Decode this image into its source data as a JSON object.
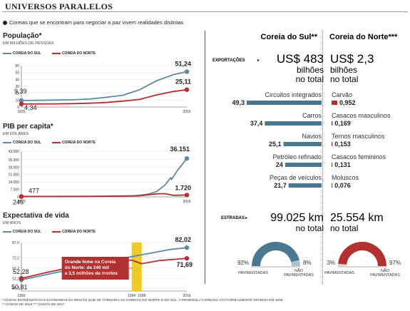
{
  "header": {
    "title": "UNIVERSOS PARALELOS",
    "subtitle": "Coreias que se encontram para negociar a paz vivem realidades distintas"
  },
  "colors": {
    "south": "#5f88a3",
    "north": "#b23030",
    "highlight": "#f1c40f",
    "annotation_bg": "#b23030"
  },
  "panels": {
    "population": {
      "title": "População*",
      "unit": "EM MILHÕES DE PESSOAS"
    },
    "gdp": {
      "title": "PIB per capita*",
      "unit": "EM DÓLARES"
    },
    "life": {
      "title": "Expectativa de vida",
      "unit": "EM ANOS"
    }
  },
  "legend": {
    "south": "COREIA DO SUL",
    "north": "COREIA DO NORTE"
  },
  "chart_data": [
    {
      "type": "line",
      "title": "População*",
      "ylabel": "EM MILHÕES DE PESSOAS",
      "x_ticks": [
        "1820",
        "2016"
      ],
      "y_ticks": [
        0,
        10,
        20,
        30,
        40,
        50,
        60
      ],
      "ylim": [
        0,
        60
      ],
      "xlim": [
        1820,
        2016
      ],
      "grid": true,
      "series": [
        {
          "name": "COREIA DO SUL",
          "start_label": "9,39",
          "end_label": "51,24",
          "x": [
            1820,
            1840,
            1860,
            1880,
            1900,
            1920,
            1940,
            1960,
            1980,
            2000,
            2016
          ],
          "values": [
            9.39,
            9.6,
            10.0,
            10.5,
            11.5,
            14.0,
            17.0,
            25.0,
            38.0,
            47.0,
            51.24
          ]
        },
        {
          "name": "COREIA DO NORTE",
          "start_label": "4,34",
          "end_label": "25,11",
          "x": [
            1820,
            1840,
            1860,
            1880,
            1900,
            1920,
            1940,
            1960,
            1980,
            2000,
            2016
          ],
          "values": [
            4.34,
            4.4,
            4.6,
            4.9,
            5.5,
            6.5,
            8.5,
            11.0,
            17.5,
            22.5,
            25.11
          ]
        }
      ]
    },
    {
      "type": "line",
      "title": "PIB per capita*",
      "ylabel": "EM DÓLARES",
      "x_ticks": [
        "1820",
        "2016"
      ],
      "y_ticks": [
        0,
        7000,
        14000,
        21000,
        28000,
        35000,
        43000
      ],
      "y_tick_labels": [
        "0",
        "7.000",
        "14.000",
        "21.000",
        "28.000",
        "35.000",
        "43.000"
      ],
      "ylim": [
        0,
        43000
      ],
      "xlim": [
        1820,
        2016
      ],
      "grid": true,
      "series": [
        {
          "name": "COREIA DO SUL",
          "start_label": "477",
          "end_label": "36.151",
          "x": [
            1820,
            1860,
            1900,
            1940,
            1955,
            1970,
            1980,
            1990,
            1997,
            1998,
            2005,
            2010,
            2016
          ],
          "values": [
            477,
            480,
            550,
            900,
            1100,
            2500,
            5000,
            11000,
            18000,
            16500,
            25000,
            30000,
            36151
          ]
        },
        {
          "name": "COREIA DO NORTE",
          "start_label": "245",
          "end_label": "1.720",
          "x": [
            1820,
            1860,
            1900,
            1940,
            1960,
            1980,
            1990,
            2000,
            2016
          ],
          "values": [
            245,
            260,
            400,
            700,
            1100,
            2800,
            3000,
            1500,
            1720
          ]
        }
      ]
    },
    {
      "type": "line",
      "title": "Expectativa de vida",
      "ylabel": "EM ANOS",
      "x_ticks": [
        "1950",
        "1994",
        "1998",
        "2016"
      ],
      "y_ticks": [
        43.0,
        52.2,
        62.2,
        72.2,
        87.0
      ],
      "y_tick_labels": [
        "43,0",
        "52,2",
        "62,2",
        "72,2",
        "87,0"
      ],
      "ylim": [
        40,
        87
      ],
      "xlim": [
        1950,
        2016
      ],
      "grid": true,
      "annotation": {
        "text": "Grande fome na Coreia do Norte: de 240 mil a 3,5 milhões de mortos",
        "x_start": 1994,
        "x_end": 1998
      },
      "series": [
        {
          "name": "COREIA DO SUL",
          "start_label": "50,81",
          "end_label": "82,02",
          "x": [
            1950,
            1960,
            1970,
            1980,
            1990,
            2000,
            2010,
            2016
          ],
          "values": [
            50.81,
            56.0,
            61.0,
            66.0,
            71.5,
            76.0,
            80.5,
            82.02
          ]
        },
        {
          "name": "COREIA DO NORTE",
          "start_label": "52,28",
          "end_label": "71,69",
          "x": [
            1950,
            1960,
            1970,
            1980,
            1990,
            1994,
            1998,
            2005,
            2016
          ],
          "values": [
            52.28,
            58.0,
            63.0,
            66.5,
            69.5,
            70.0,
            66.5,
            69.5,
            71.69
          ]
        }
      ]
    },
    {
      "type": "bar",
      "title": "EXPORTAÇÕES",
      "categories": [
        "Circuitos integrados",
        "Carros",
        "Navios",
        "Petróleo refinado",
        "Peças de veículos"
      ],
      "series": [
        {
          "name": "Coreia do Sul",
          "values": [
            49.3,
            37.4,
            25.1,
            24,
            21.7
          ],
          "labels": [
            "49,3",
            "37,4",
            "25,1",
            "24",
            "21,7"
          ]
        }
      ]
    },
    {
      "type": "bar",
      "title": "EXPORTAÇÕES",
      "categories": [
        "Carvão",
        "Casacos masculinos",
        "Ternos masculinos",
        "Casacos femininos",
        "Moluscos"
      ],
      "series": [
        {
          "name": "Coreia do Norte",
          "values": [
            0.952,
            0.169,
            0.153,
            0.131,
            0.076
          ],
          "labels": [
            "0,952",
            "0,169",
            "0,153",
            "0,131",
            "0,076"
          ]
        }
      ]
    },
    {
      "type": "pie",
      "title": "ESTRADAS",
      "categories": [
        "PAVIMENTADAS",
        "NÃO PAVIMENTADAS"
      ],
      "series": [
        {
          "name": "Coreia do Sul",
          "values": [
            92,
            8
          ],
          "labels": [
            "92%",
            "8%"
          ]
        }
      ]
    },
    {
      "type": "pie",
      "title": "ESTRADAS",
      "categories": [
        "PAVIMENTADAS",
        "NÃO PAVIMENTADAS"
      ],
      "series": [
        {
          "name": "Coreia do Norte",
          "values": [
            3,
            97
          ],
          "labels": [
            "3%",
            "97%"
          ]
        }
      ]
    }
  ],
  "comparison": {
    "south_title": "Coreia do Sul**",
    "north_title": "Coreia do Norte***",
    "exports_label": "EXPORTAÇÕES",
    "south_exports_value": "US$ 483",
    "south_exports_unit": "bilhões",
    "south_exports_note": "no total",
    "north_exports_value": "US$ 2,3",
    "north_exports_unit": "bilhões",
    "north_exports_note": "no total",
    "roads_label": "ESTRADAS",
    "south_roads_value": "99.025 km",
    "south_roads_note": "no total",
    "north_roads_value": "25.554 km",
    "north_roads_note": "no total",
    "south_pie_color": "#4a7891",
    "south_pie_small_color": "#a9c3d3",
    "north_pie_color": "#f2cfc9",
    "north_pie_small_color": "#b23030",
    "paved_label": "PAVIMENTADAS",
    "unpaved_label_1": "NÃO",
    "unpaved_label_2": "PAVIMENTADAS"
  },
  "footnotes": {
    "line1": "* DADOS ESTIMADOS DAS ECONOMIAS DA REGIÃO QUE SE TORNARIA AS COREIAS DO NORTE E DO SUL. A PENÍNSULA COREANA FOI FORMALMENTE DIVIDIDA EM 1946",
    "line2": "** DADOS DE 2016        *** DADOS DE 2017"
  }
}
